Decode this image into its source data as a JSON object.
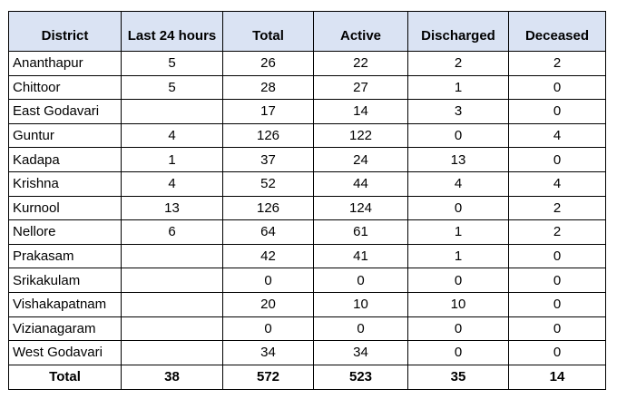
{
  "table": {
    "header": [
      "District",
      "Last 24 hours",
      "Total",
      "Active",
      "Discharged",
      "Deceased"
    ],
    "rows": [
      [
        "Ananthapur",
        5,
        26,
        22,
        2,
        2
      ],
      [
        "Chittoor",
        5,
        28,
        27,
        1,
        0
      ],
      [
        "East Godavari",
        null,
        17,
        14,
        3,
        0
      ],
      [
        "Guntur",
        4,
        126,
        122,
        0,
        4
      ],
      [
        "Kadapa",
        1,
        37,
        24,
        13,
        0
      ],
      [
        "Krishna",
        4,
        52,
        44,
        4,
        4
      ],
      [
        "Kurnool",
        13,
        126,
        124,
        0,
        2
      ],
      [
        "Nellore",
        6,
        64,
        61,
        1,
        2
      ],
      [
        "Prakasam",
        null,
        42,
        41,
        1,
        0
      ],
      [
        "Srikakulam",
        null,
        0,
        0,
        0,
        0
      ],
      [
        "Vishakapatnam",
        null,
        20,
        10,
        10,
        0
      ],
      [
        "Vizianagaram",
        null,
        0,
        0,
        0,
        0
      ],
      [
        "West Godavari",
        null,
        34,
        34,
        0,
        0
      ]
    ],
    "total": [
      "Total",
      38,
      572,
      523,
      35,
      14
    ]
  }
}
